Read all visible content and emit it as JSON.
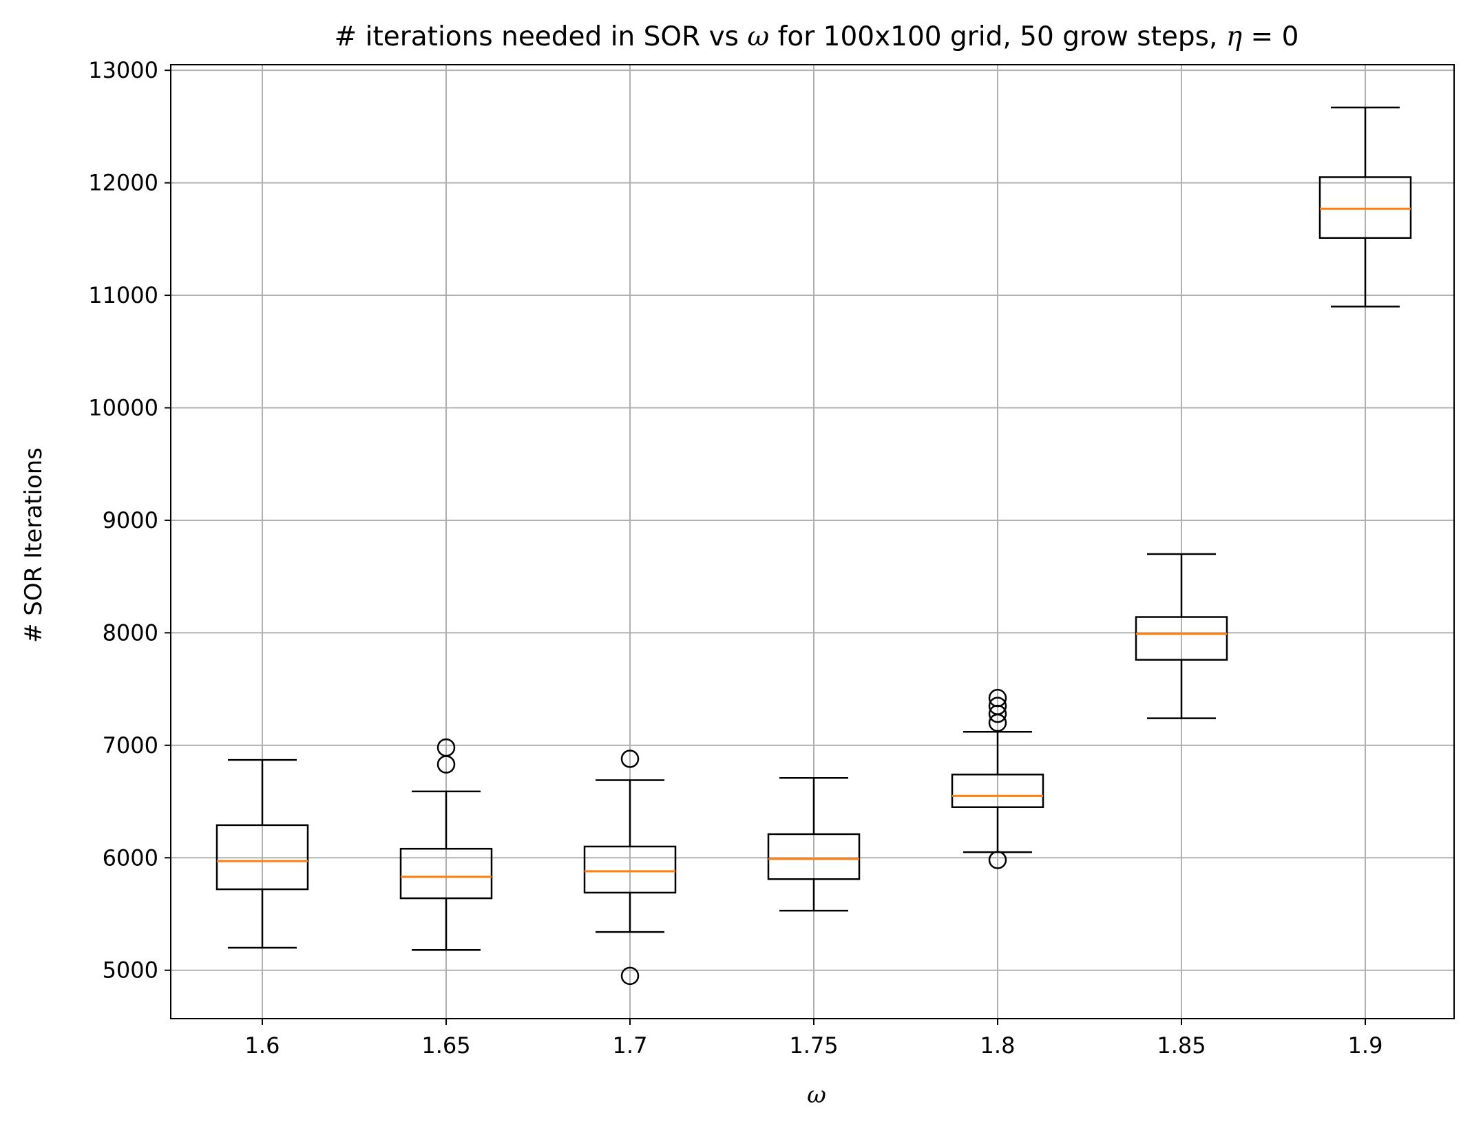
{
  "chart_data": {
    "type": "box",
    "title": "# iterations needed in SOR vs ω for 100x100 grid, 50 grow steps, η = 0",
    "title_parts": {
      "prefix": "# iterations needed in SOR vs ",
      "omega": "ω",
      "middle": " for 100x100 grid, 50 grow steps, ",
      "eta": "η",
      "suffix": " = 0"
    },
    "xlabel": "ω",
    "ylabel": "# SOR Iterations",
    "ylim": [
      4570,
      13050
    ],
    "yticks": [
      5000,
      6000,
      7000,
      8000,
      9000,
      10000,
      11000,
      12000,
      13000
    ],
    "ytick_labels": [
      "5000",
      "6000",
      "7000",
      "8000",
      "9000",
      "10000",
      "11000",
      "12000",
      "13000"
    ],
    "grid": true,
    "colors": {
      "box": "#000000",
      "median": "#ff7f0e",
      "grid": "#b0b0b0"
    },
    "categories": [
      "1.6",
      "1.65",
      "1.7",
      "1.75",
      "1.8",
      "1.85",
      "1.9"
    ],
    "boxes": [
      {
        "label": "1.6",
        "whisker_low": 5200,
        "q1": 5720,
        "median": 5970,
        "q3": 6290,
        "whisker_high": 6870,
        "outliers": []
      },
      {
        "label": "1.65",
        "whisker_low": 5180,
        "q1": 5640,
        "median": 5830,
        "q3": 6080,
        "whisker_high": 6590,
        "outliers": [
          6830,
          6980
        ]
      },
      {
        "label": "1.7",
        "whisker_low": 5340,
        "q1": 5690,
        "median": 5880,
        "q3": 6100,
        "whisker_high": 6690,
        "outliers": [
          6880,
          4950
        ]
      },
      {
        "label": "1.75",
        "whisker_low": 5530,
        "q1": 5810,
        "median": 5990,
        "q3": 6210,
        "whisker_high": 6710,
        "outliers": []
      },
      {
        "label": "1.8",
        "whisker_low": 6050,
        "q1": 6450,
        "median": 6550,
        "q3": 6740,
        "whisker_high": 7120,
        "outliers": [
          7200,
          7280,
          7350,
          7420,
          5980
        ]
      },
      {
        "label": "1.85",
        "whisker_low": 7240,
        "q1": 7760,
        "median": 7990,
        "q3": 8140,
        "whisker_high": 8700,
        "outliers": []
      },
      {
        "label": "1.9",
        "whisker_low": 10900,
        "q1": 11510,
        "median": 11770,
        "q3": 12050,
        "whisker_high": 12670,
        "outliers": []
      }
    ]
  }
}
